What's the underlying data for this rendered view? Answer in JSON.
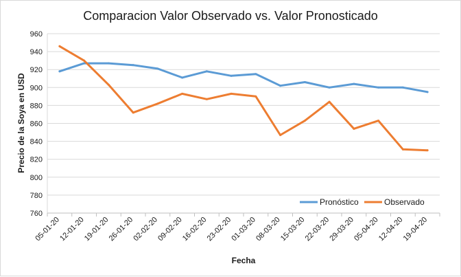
{
  "chart_data": {
    "type": "line",
    "title": "Comparacion Valor Observado vs. Valor Pronosticado",
    "xlabel": "Fecha",
    "ylabel": "Precio de la Soya en USD",
    "ylim": [
      760,
      960
    ],
    "yticks": [
      760,
      780,
      800,
      820,
      840,
      860,
      880,
      900,
      920,
      940,
      960
    ],
    "grid": true,
    "legend_position": "bottom-right",
    "categories": [
      "05-01-20",
      "12-01-20",
      "19-01-20",
      "26-01-20",
      "02-02-20",
      "09-02-20",
      "16-02-20",
      "23-02-20",
      "01-03-20",
      "08-03-20",
      "15-03-20",
      "22-03-20",
      "29-03-20",
      "05-04-20",
      "12-04-20",
      "19-04-20"
    ],
    "series": [
      {
        "name": "Pronóstico",
        "color": "#5b9bd5",
        "values": [
          918,
          927,
          927,
          925,
          921,
          911,
          918,
          913,
          915,
          902,
          906,
          900,
          904,
          900,
          900,
          895
        ]
      },
      {
        "name": "Observado",
        "color": "#ed7d31",
        "values": [
          946,
          930,
          903,
          872,
          882,
          893,
          887,
          893,
          890,
          847,
          863,
          884,
          854,
          863,
          831,
          830
        ]
      }
    ]
  }
}
